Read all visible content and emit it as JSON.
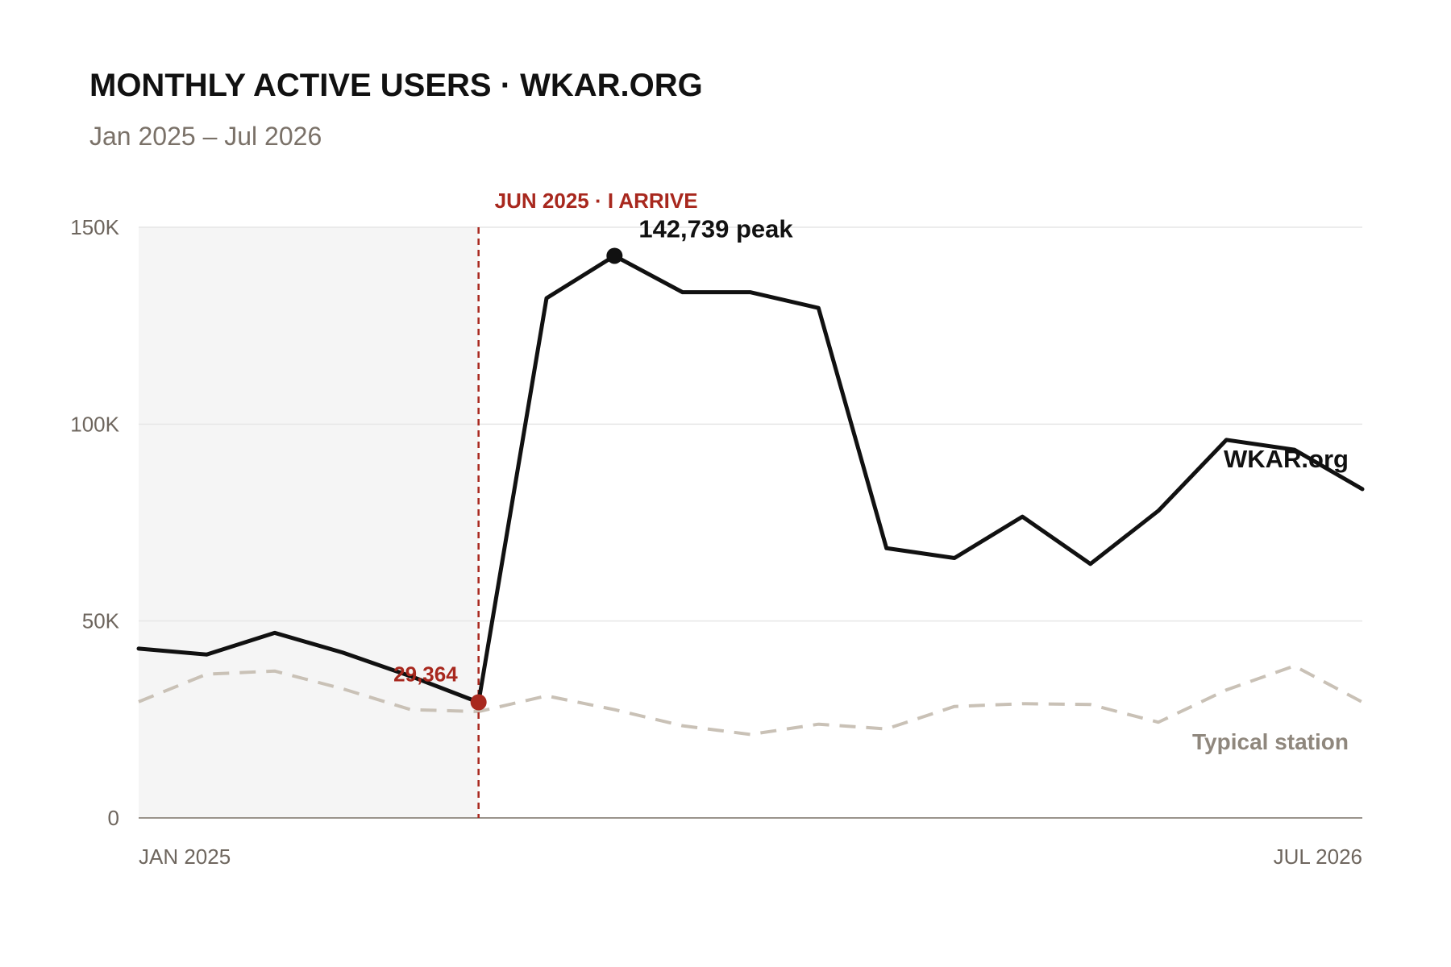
{
  "colors": {
    "main_line": "#111111",
    "typical_line": "#c9c1b6",
    "accent_red": "#a8281e",
    "shaded_region": "#f5f5f5",
    "grid": "#e6e6e6"
  },
  "chart_data": {
    "type": "line",
    "title": "MONTHLY ACTIVE USERS · WKAR.ORG",
    "subtitle": "Jan 2025 – Jul 2026",
    "x": [
      "Jan 2025",
      "Feb 2025",
      "Mar 2025",
      "Apr 2025",
      "May 2025",
      "Jun 2025",
      "Jul 2025",
      "Aug 2025",
      "Sep 2025",
      "Oct 2025",
      "Nov 2025",
      "Dec 2025",
      "Jan 2026",
      "Feb 2026",
      "Mar 2026",
      "Apr 2026",
      "May 2026",
      "Jun 2026",
      "Jul 2026"
    ],
    "x_tick_labels": [
      "JAN 2025",
      "JUL 2026"
    ],
    "ylim": [
      0,
      150000
    ],
    "y_ticks": [
      0,
      50000,
      100000,
      150000
    ],
    "y_tick_labels": [
      "0",
      "50K",
      "100K",
      "150K"
    ],
    "grid": true,
    "series": [
      {
        "name": "WKAR.org",
        "style": "solid",
        "values": [
          43000,
          41500,
          47000,
          42000,
          36000,
          29364,
          132000,
          142739,
          133500,
          133500,
          129500,
          68500,
          66000,
          76500,
          64500,
          78000,
          96000,
          93500,
          83500
        ]
      },
      {
        "name": "Typical station",
        "style": "dashed",
        "values": [
          29500,
          36500,
          37300,
          32800,
          27500,
          27000,
          31000,
          27500,
          23400,
          21200,
          23800,
          22600,
          28300,
          29000,
          28800,
          24300,
          32500,
          38600,
          29400
        ]
      }
    ],
    "shaded_range": [
      "Jan 2025",
      "Jun 2025"
    ],
    "annotations": {
      "arrival": {
        "x": "Jun 2025",
        "label": "JUN 2025 · I ARRIVE"
      },
      "arrival_value": {
        "x": "Jun 2025",
        "value": 29364,
        "label": "29,364"
      },
      "peak": {
        "x": "Aug 2025",
        "value": 142739,
        "label": "142,739 peak"
      }
    }
  }
}
